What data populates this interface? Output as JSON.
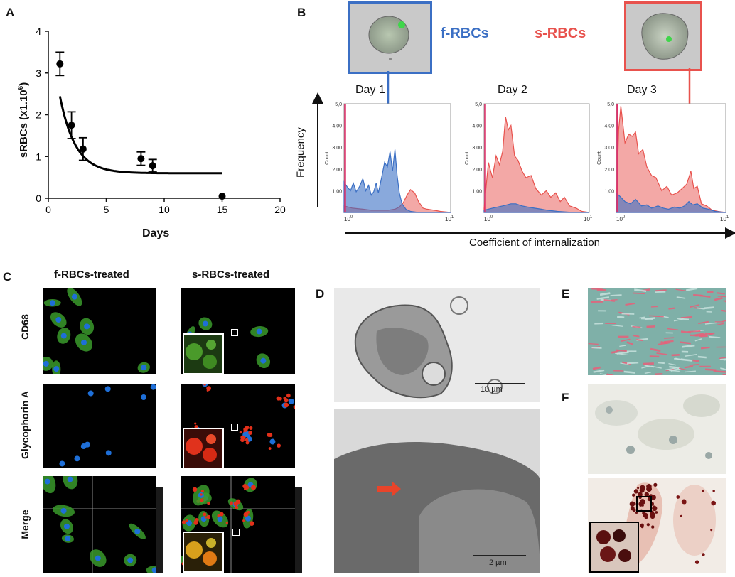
{
  "panels": {
    "A": "A",
    "B": "B",
    "C": "C",
    "D": "D",
    "E": "E",
    "F": "F"
  },
  "panel_a": {
    "ylabel_main": "sRBCs (x1.10",
    "ylabel_sup": "6",
    "ylabel_end": ")",
    "xlabel": "Days"
  },
  "panel_b": {
    "legend_f": "f-RBCs",
    "legend_s": "s-RBCs",
    "legend_f_color": "#3b6fc4",
    "legend_s_color": "#e8524d",
    "ylabel": "Frequency",
    "xlabel": "Coefficient of internalization",
    "days": [
      "Day 1",
      "Day 2",
      "Day 3"
    ],
    "count_label": "Count",
    "yticks": [
      "1,00",
      "2,00",
      "3,00",
      "4,00",
      "5,0"
    ],
    "xticks": [
      "10",
      "10"
    ],
    "xtick_sups": [
      "0",
      "1"
    ]
  },
  "panel_c": {
    "col_f": "f-RBCs-treated",
    "col_s": "s-RBCs-treated",
    "rows": [
      "CD68",
      "Glycophorin A",
      "Merge"
    ]
  },
  "panel_d": {
    "scale_top": "10 µm",
    "scale_bottom": "2 µm"
  },
  "chart_data": [
    {
      "type": "scatter",
      "xlabel": "Days",
      "ylabel": "sRBCs (x1.10^6)",
      "xlim": [
        0,
        20
      ],
      "ylim": [
        0,
        4
      ],
      "xticks": [
        0,
        5,
        10,
        15,
        20
      ],
      "yticks": [
        0,
        1,
        2,
        3,
        4
      ],
      "points": [
        {
          "x": 1,
          "y": 3.22,
          "err": 0.28
        },
        {
          "x": 2,
          "y": 1.75,
          "err": 0.32
        },
        {
          "x": 3,
          "y": 1.18,
          "err": 0.27
        },
        {
          "x": 8,
          "y": 0.95,
          "err": 0.16
        },
        {
          "x": 9,
          "y": 0.78,
          "err": 0.15
        },
        {
          "x": 15,
          "y": 0.05,
          "err": 0
        }
      ],
      "fit": {
        "type": "exponential decay",
        "plateau": 0.6,
        "y0": 4.5,
        "k": 0.75,
        "x_range": [
          1,
          15
        ]
      }
    },
    {
      "type": "area",
      "title": "Day 1",
      "xscale": "log",
      "xlim": [
        1,
        10
      ],
      "ylim": [
        0,
        5
      ],
      "series": [
        {
          "name": "f-RBCs",
          "color": "#3b6fc4",
          "x": [
            1,
            1.08,
            1.15,
            1.22,
            1.3,
            1.4,
            1.5,
            1.6,
            1.7,
            1.8,
            1.9,
            2.0,
            2.1,
            2.25,
            2.4,
            2.55,
            2.7,
            2.85,
            3.0,
            3.15,
            3.3,
            3.5,
            3.8,
            4.2,
            5,
            7,
            10
          ],
          "y": [
            1.4,
            1.15,
            1.0,
            1.35,
            0.95,
            1.2,
            1.55,
            1.0,
            1.25,
            0.8,
            0.95,
            1.35,
            0.9,
            1.6,
            2.3,
            2.1,
            2.8,
            1.9,
            2.9,
            1.7,
            0.9,
            0.4,
            0.15,
            0.05,
            0,
            0,
            0
          ]
        },
        {
          "name": "s-RBCs",
          "color": "#e8524d",
          "x": [
            1,
            1.2,
            1.5,
            1.8,
            2.2,
            2.6,
            3.0,
            3.3,
            3.6,
            3.9,
            4.2,
            4.6,
            5.0,
            5.5,
            6,
            7,
            8,
            10
          ],
          "y": [
            0.3,
            0.2,
            0.15,
            0.1,
            0.1,
            0.1,
            0.15,
            0.25,
            0.45,
            0.8,
            1.05,
            0.9,
            0.5,
            0.2,
            0.15,
            0.1,
            0.05,
            0
          ]
        }
      ]
    },
    {
      "type": "area",
      "title": "Day 2",
      "xscale": "log",
      "xlim": [
        1,
        10
      ],
      "ylim": [
        0,
        5
      ],
      "series": [
        {
          "name": "f-RBCs",
          "color": "#3b6fc4",
          "x": [
            1,
            1.2,
            1.5,
            1.8,
            2.0,
            2.3,
            2.6,
            3.0,
            3.5,
            4,
            5,
            7,
            10
          ],
          "y": [
            0.1,
            0.2,
            0.3,
            0.4,
            0.4,
            0.3,
            0.25,
            0.2,
            0.15,
            0.1,
            0.05,
            0,
            0
          ]
        },
        {
          "name": "s-RBCs",
          "color": "#e8524d",
          "x": [
            1,
            1.1,
            1.2,
            1.3,
            1.4,
            1.5,
            1.6,
            1.7,
            1.8,
            1.95,
            2.1,
            2.3,
            2.5,
            2.8,
            3.1,
            3.5,
            3.9,
            4.3,
            4.8,
            5.3,
            5.8,
            6.5,
            7.5,
            8.5,
            10
          ],
          "y": [
            0.2,
            2.3,
            1.6,
            2.6,
            2.2,
            2.8,
            4.4,
            3.8,
            4.0,
            2.6,
            2.4,
            1.9,
            1.6,
            1.7,
            1.1,
            0.8,
            1.0,
            0.7,
            0.9,
            0.5,
            0.7,
            0.3,
            0.2,
            0.05,
            0
          ]
        }
      ]
    },
    {
      "type": "area",
      "title": "Day 3",
      "xscale": "log",
      "xlim": [
        1,
        10
      ],
      "ylim": [
        0,
        5
      ],
      "series": [
        {
          "name": "f-RBCs",
          "color": "#3b6fc4",
          "x": [
            1,
            1.1,
            1.2,
            1.35,
            1.5,
            1.7,
            1.9,
            2.1,
            2.4,
            2.7,
            3,
            3.4,
            3.8,
            4.2,
            4.6,
            5,
            5.5,
            6.2,
            7,
            8,
            10
          ],
          "y": [
            0.9,
            0.7,
            0.5,
            0.4,
            0.6,
            0.3,
            0.35,
            0.2,
            0.3,
            0.2,
            0.15,
            0.25,
            0.2,
            0.3,
            0.5,
            0.35,
            0.4,
            0.2,
            0.15,
            0.05,
            0
          ]
        },
        {
          "name": "s-RBCs",
          "color": "#e8524d",
          "x": [
            1,
            1.05,
            1.1,
            1.2,
            1.3,
            1.4,
            1.5,
            1.6,
            1.75,
            1.9,
            2.1,
            2.3,
            2.6,
            2.9,
            3.2,
            3.6,
            4.0,
            4.4,
            4.8,
            5.1,
            5.5,
            6.0,
            6.7,
            7.5,
            8.5,
            10
          ],
          "y": [
            0.2,
            3.8,
            4.9,
            3.2,
            3.6,
            3.5,
            3.7,
            2.7,
            2.9,
            2.1,
            1.7,
            1.6,
            1.0,
            1.2,
            0.8,
            0.9,
            1.1,
            1.3,
            1.9,
            1.1,
            1.2,
            0.4,
            0.3,
            0.1,
            0.05,
            0
          ]
        }
      ]
    }
  ]
}
